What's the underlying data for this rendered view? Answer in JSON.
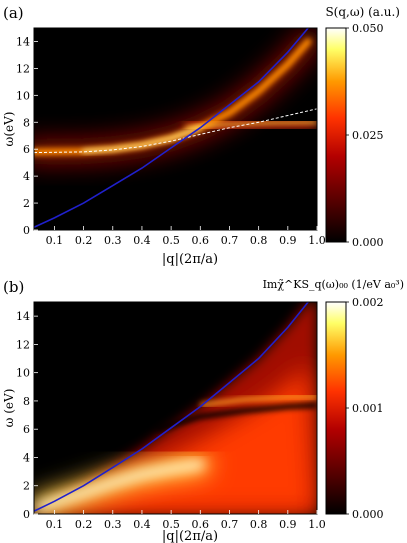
{
  "chart_data": [
    {
      "type": "heatmap",
      "panel_label": "(a)",
      "title": "S(q,ω) (a.u.)",
      "xlabel": "|q|(2π/a)",
      "ylabel": "ω(eV)",
      "xlim": [
        0.03,
        1.0
      ],
      "ylim": [
        0,
        15
      ],
      "xticks": [
        "0.1",
        "0.2",
        "0.3",
        "0.4",
        "0.5",
        "0.6",
        "0.7",
        "0.8",
        "0.9",
        "1.0"
      ],
      "yticks": [
        "0",
        "2",
        "4",
        "6",
        "8",
        "10",
        "12",
        "14"
      ],
      "colorbar": {
        "min": 0.0,
        "max": 0.05,
        "ticks": [
          "0.000",
          "0.025",
          "0.050"
        ]
      },
      "colormap": [
        "#000000",
        "#5a0000",
        "#b30000",
        "#ff3300",
        "#ff9900",
        "#ffff66",
        "#ffffff"
      ],
      "features": {
        "plasmon_branch": {
          "x": [
            0.03,
            0.2,
            0.3,
            0.4,
            0.5,
            0.6,
            0.7,
            0.8,
            0.9,
            0.97
          ],
          "y": [
            5.8,
            5.85,
            6.0,
            6.3,
            6.8,
            7.6,
            8.7,
            10.3,
            12.3,
            14.0
          ]
        },
        "flat_band": {
          "x": [
            0.55,
            0.7,
            0.85,
            1.0
          ],
          "y": [
            7.6,
            7.85,
            7.95,
            8.0
          ]
        },
        "blue_curve": {
          "x": [
            0.03,
            0.1,
            0.2,
            0.3,
            0.4,
            0.5,
            0.6,
            0.7,
            0.8,
            0.9,
            0.97
          ],
          "y": [
            0.2,
            0.9,
            2.0,
            3.3,
            4.6,
            6.1,
            7.6,
            9.3,
            11.0,
            13.2,
            15.0
          ]
        },
        "dashed_curve": {
          "x": [
            0.03,
            0.2,
            0.3,
            0.4,
            0.5,
            0.6,
            0.7,
            0.8,
            0.9,
            1.0
          ],
          "y": [
            5.75,
            5.8,
            5.95,
            6.2,
            6.6,
            7.1,
            7.6,
            8.0,
            8.5,
            9.0
          ]
        }
      },
      "colors": {
        "blue_curve": "#2020cc",
        "dashed_curve": "#ffffff"
      }
    },
    {
      "type": "heatmap",
      "panel_label": "(b)",
      "title": "Imχ̃^KS_q(ω)₀₀ (1/eV a₀³)",
      "xlabel": "|q|(2π/a)",
      "ylabel": "ω (eV)",
      "xlim": [
        0.03,
        1.0
      ],
      "ylim": [
        0,
        15
      ],
      "xticks": [
        "0.1",
        "0.2",
        "0.3",
        "0.4",
        "0.5",
        "0.6",
        "0.7",
        "0.8",
        "0.9",
        "1.0"
      ],
      "yticks": [
        "0",
        "2",
        "4",
        "6",
        "8",
        "10",
        "12",
        "14"
      ],
      "colorbar": {
        "min": 0.0,
        "max": 0.002,
        "ticks": [
          "0.000",
          "0.001",
          "0.002"
        ]
      },
      "colormap": [
        "#000000",
        "#5a0000",
        "#b30000",
        "#ff3300",
        "#ff9900",
        "#ffff66",
        "#ffffff"
      ],
      "features": {
        "continuum_upper_edge": {
          "x": [
            0.03,
            0.1,
            0.2,
            0.3,
            0.4,
            0.5,
            0.6,
            0.7,
            0.8,
            0.9,
            0.97
          ],
          "y": [
            0.2,
            0.9,
            2.0,
            3.3,
            4.6,
            6.1,
            7.6,
            9.3,
            11.0,
            13.2,
            15.0
          ]
        },
        "bright_lobe_peak": {
          "x": [
            0.05,
            0.2,
            0.3,
            0.4,
            0.5,
            0.6
          ],
          "y": [
            0.5,
            1.5,
            2.2,
            2.8,
            3.2,
            3.5
          ]
        },
        "dark_band": {
          "x": [
            0.45,
            0.6,
            0.75,
            0.9,
            1.0
          ],
          "y": [
            6.0,
            6.9,
            7.3,
            7.6,
            7.7
          ]
        },
        "bright_band": {
          "x": [
            0.6,
            0.75,
            0.9,
            1.0
          ],
          "y": [
            7.7,
            8.1,
            8.3,
            8.3
          ]
        }
      },
      "colors": {
        "blue_curve": "#2020cc"
      }
    }
  ]
}
